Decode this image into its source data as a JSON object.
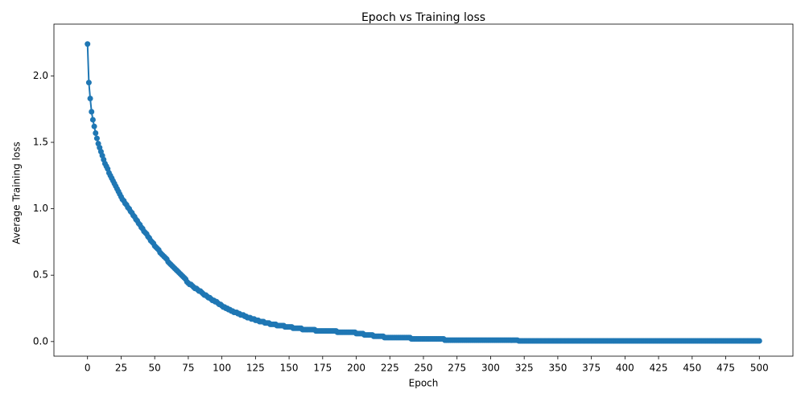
{
  "chart_data": {
    "type": "line",
    "title": "Epoch vs Training loss",
    "x_label": "Epoch",
    "y_label": "Average Training loss",
    "x": [
      0,
      1,
      2,
      3,
      4,
      5,
      6,
      7,
      8,
      9,
      10,
      11,
      12,
      13,
      14,
      15,
      16,
      17,
      18,
      19,
      20,
      21,
      22,
      23,
      24,
      25,
      26,
      27,
      28,
      29,
      30,
      31,
      32,
      33,
      34,
      35,
      36,
      37,
      38,
      39,
      40,
      41,
      42,
      43,
      44,
      45,
      46,
      47,
      48,
      49,
      50,
      51,
      52,
      53,
      54,
      55,
      56,
      57,
      58,
      59,
      60,
      61,
      62,
      63,
      64,
      65,
      66,
      67,
      68,
      69,
      70,
      71,
      72,
      73,
      74,
      75,
      76,
      77,
      78,
      79,
      80,
      81,
      82,
      83,
      84,
      85,
      86,
      87,
      88,
      89,
      90,
      91,
      92,
      93,
      94,
      95,
      96,
      97,
      98,
      99,
      100,
      101,
      102,
      103,
      104,
      105,
      106,
      107,
      108,
      109,
      110,
      111,
      112,
      113,
      114,
      115,
      116,
      117,
      118,
      119,
      120,
      121,
      122,
      123,
      124,
      125,
      126,
      127,
      128,
      129,
      130,
      131,
      132,
      133,
      134,
      135,
      136,
      137,
      138,
      139,
      140,
      141,
      142,
      143,
      144,
      145,
      146,
      147,
      148,
      149,
      150,
      151,
      152,
      153,
      154,
      155,
      156,
      157,
      158,
      159,
      160,
      161,
      162,
      163,
      164,
      165,
      166,
      167,
      168,
      169,
      170,
      171,
      172,
      173,
      174,
      175,
      176,
      177,
      178,
      179,
      180,
      181,
      182,
      183,
      184,
      185,
      186,
      187,
      188,
      189,
      190,
      191,
      192,
      193,
      194,
      195,
      196,
      197,
      198,
      199,
      200,
      201,
      202,
      203,
      204,
      205,
      206,
      207,
      208,
      209,
      210,
      211,
      212,
      213,
      214,
      215,
      216,
      217,
      218,
      219,
      220,
      221,
      222,
      223,
      224,
      225,
      226,
      227,
      228,
      229,
      230,
      231,
      232,
      233,
      234,
      235,
      236,
      237,
      238,
      239,
      240,
      241,
      242,
      243,
      244,
      245,
      246,
      247,
      248,
      249,
      250,
      251,
      252,
      253,
      254,
      255,
      256,
      257,
      258,
      259,
      260,
      261,
      262,
      263,
      264,
      265,
      266,
      267,
      268,
      269,
      270,
      271,
      272,
      273,
      274,
      275,
      276,
      277,
      278,
      279,
      280,
      281,
      282,
      283,
      284,
      285,
      286,
      287,
      288,
      289,
      290,
      291,
      292,
      293,
      294,
      295,
      296,
      297,
      298,
      299,
      300,
      301,
      302,
      303,
      304,
      305,
      306,
      307,
      308,
      309,
      310,
      311,
      312,
      313,
      314,
      315,
      316,
      317,
      318,
      319,
      320,
      321,
      322,
      323,
      324,
      325,
      326,
      327,
      328,
      329,
      330,
      331,
      332,
      333,
      334,
      335,
      336,
      337,
      338,
      339,
      340,
      341,
      342,
      343,
      344,
      345,
      346,
      347,
      348,
      349,
      350,
      351,
      352,
      353,
      354,
      355,
      356,
      357,
      358,
      359,
      360,
      361,
      362,
      363,
      364,
      365,
      366,
      367,
      368,
      369,
      370,
      371,
      372,
      373,
      374,
      375,
      376,
      377,
      378,
      379,
      380,
      381,
      382,
      383,
      384,
      385,
      386,
      387,
      388,
      389,
      390,
      391,
      392,
      393,
      394,
      395,
      396,
      397,
      398,
      399,
      400,
      401,
      402,
      403,
      404,
      405,
      406,
      407,
      408,
      409,
      410,
      411,
      412,
      413,
      414,
      415,
      416,
      417,
      418,
      419,
      420,
      421,
      422,
      423,
      424,
      425,
      426,
      427,
      428,
      429,
      430,
      431,
      432,
      433,
      434,
      435,
      436,
      437,
      438,
      439,
      440,
      441,
      442,
      443,
      444,
      445,
      446,
      447,
      448,
      449,
      450,
      451,
      452,
      453,
      454,
      455,
      456,
      457,
      458,
      459,
      460,
      461,
      462,
      463,
      464,
      465,
      466,
      467,
      468,
      469,
      470,
      471,
      472,
      473,
      474,
      475,
      476,
      477,
      478,
      479,
      480,
      481,
      482,
      483,
      484,
      485,
      486,
      487,
      488,
      489,
      490,
      491,
      492,
      493,
      494,
      495,
      496,
      497,
      498,
      499,
      500
    ],
    "values": [
      2.24,
      1.95,
      1.83,
      1.73,
      1.67,
      1.62,
      1.57,
      1.53,
      1.49,
      1.46,
      1.43,
      1.4,
      1.37,
      1.34,
      1.32,
      1.3,
      1.27,
      1.25,
      1.23,
      1.21,
      1.19,
      1.17,
      1.15,
      1.13,
      1.11,
      1.09,
      1.07,
      1.06,
      1.04,
      1.03,
      1.01,
      1.0,
      0.98,
      0.97,
      0.95,
      0.94,
      0.92,
      0.91,
      0.89,
      0.88,
      0.86,
      0.85,
      0.83,
      0.82,
      0.81,
      0.79,
      0.78,
      0.76,
      0.75,
      0.74,
      0.72,
      0.71,
      0.7,
      0.69,
      0.67,
      0.66,
      0.65,
      0.64,
      0.63,
      0.62,
      0.6,
      0.59,
      0.58,
      0.57,
      0.56,
      0.55,
      0.54,
      0.53,
      0.52,
      0.51,
      0.5,
      0.49,
      0.48,
      0.47,
      0.45,
      0.44,
      0.43,
      0.43,
      0.42,
      0.41,
      0.4,
      0.4,
      0.39,
      0.38,
      0.38,
      0.37,
      0.36,
      0.35,
      0.35,
      0.34,
      0.33,
      0.33,
      0.32,
      0.31,
      0.31,
      0.3,
      0.3,
      0.29,
      0.28,
      0.28,
      0.27,
      0.26,
      0.26,
      0.25,
      0.25,
      0.24,
      0.24,
      0.23,
      0.23,
      0.22,
      0.22,
      0.22,
      0.21,
      0.21,
      0.2,
      0.2,
      0.2,
      0.19,
      0.19,
      0.18,
      0.18,
      0.18,
      0.17,
      0.17,
      0.17,
      0.16,
      0.16,
      0.16,
      0.15,
      0.15,
      0.15,
      0.15,
      0.14,
      0.14,
      0.14,
      0.14,
      0.13,
      0.13,
      0.13,
      0.13,
      0.13,
      0.12,
      0.12,
      0.12,
      0.12,
      0.12,
      0.12,
      0.11,
      0.11,
      0.11,
      0.11,
      0.11,
      0.11,
      0.1,
      0.1,
      0.1,
      0.1,
      0.1,
      0.1,
      0.1,
      0.09,
      0.09,
      0.09,
      0.09,
      0.09,
      0.09,
      0.09,
      0.09,
      0.09,
      0.09,
      0.08,
      0.08,
      0.08,
      0.08,
      0.08,
      0.08,
      0.08,
      0.08,
      0.08,
      0.08,
      0.08,
      0.08,
      0.08,
      0.08,
      0.08,
      0.08,
      0.07,
      0.07,
      0.07,
      0.07,
      0.07,
      0.07,
      0.07,
      0.07,
      0.07,
      0.07,
      0.07,
      0.07,
      0.07,
      0.07,
      0.06,
      0.06,
      0.06,
      0.06,
      0.06,
      0.06,
      0.05,
      0.05,
      0.05,
      0.05,
      0.05,
      0.05,
      0.05,
      0.04,
      0.04,
      0.04,
      0.04,
      0.04,
      0.04,
      0.04,
      0.04,
      0.03,
      0.03,
      0.03,
      0.03,
      0.03,
      0.03,
      0.03,
      0.03,
      0.03,
      0.03,
      0.03,
      0.03,
      0.03,
      0.03,
      0.03,
      0.03,
      0.03,
      0.03,
      0.03,
      0.03,
      0.02,
      0.02,
      0.02,
      0.02,
      0.02,
      0.02,
      0.02,
      0.02,
      0.02,
      0.02,
      0.02,
      0.02,
      0.02,
      0.02,
      0.02,
      0.02,
      0.02,
      0.02,
      0.02,
      0.02,
      0.02,
      0.02,
      0.02,
      0.02,
      0.02,
      0.01,
      0.01,
      0.01,
      0.01,
      0.01,
      0.01,
      0.01,
      0.01,
      0.01,
      0.01,
      0.01,
      0.01,
      0.01,
      0.01,
      0.01,
      0.01,
      0.01,
      0.01,
      0.01,
      0.01,
      0.01,
      0.01,
      0.01,
      0.01,
      0.01,
      0.01,
      0.01,
      0.01,
      0.01,
      0.01,
      0.01,
      0.01,
      0.01,
      0.01,
      0.01,
      0.01,
      0.01,
      0.01,
      0.01,
      0.01,
      0.01,
      0.01,
      0.01,
      0.01,
      0.01,
      0.01,
      0.01,
      0.01,
      0.01,
      0.01,
      0.01,
      0.01,
      0.01,
      0.01,
      0.01,
      0.005,
      0.005,
      0.005,
      0.005,
      0.005,
      0.005,
      0.005,
      0.005,
      0.005,
      0.005,
      0.005,
      0.005,
      0.005,
      0.005,
      0.005,
      0.005,
      0.005,
      0.005,
      0.005,
      0.005,
      0.005,
      0.005,
      0.005,
      0.005,
      0.005,
      0.005,
      0.005,
      0.005,
      0.005,
      0.005,
      0.005,
      0.005,
      0.005,
      0.005,
      0.005,
      0.005,
      0.005,
      0.005,
      0.005,
      0.005,
      0.005,
      0.005,
      0.005,
      0.005,
      0.005,
      0.005,
      0.005,
      0.005,
      0.005,
      0.005,
      0.005,
      0.005,
      0.005,
      0.005,
      0.005,
      0.005,
      0.005,
      0.005,
      0.005,
      0.005,
      0.005,
      0.005,
      0.005,
      0.005,
      0.005,
      0.005,
      0.005,
      0.005,
      0.005,
      0.005,
      0.005,
      0.005,
      0.005,
      0.005,
      0.005,
      0.005,
      0.005,
      0.005,
      0.005,
      0.005,
      0.005,
      0.005,
      0.005,
      0.005,
      0.005,
      0.005,
      0.005,
      0.005,
      0.005,
      0.005,
      0.005,
      0.005,
      0.005,
      0.005,
      0.005,
      0.005,
      0.005,
      0.005,
      0.005,
      0.005,
      0.005,
      0.005,
      0.005,
      0.005,
      0.005,
      0.005,
      0.005,
      0.005,
      0.005,
      0.005,
      0.005,
      0.005,
      0.005,
      0.005,
      0.005,
      0.005,
      0.005,
      0.005,
      0.005,
      0.005,
      0.005,
      0.005,
      0.005,
      0.005,
      0.005,
      0.005,
      0.005,
      0.005,
      0.005,
      0.005,
      0.005,
      0.005,
      0.005,
      0.005,
      0.005,
      0.005,
      0.005,
      0.005,
      0.005,
      0.005,
      0.005,
      0.005,
      0.005,
      0.005,
      0.005,
      0.005,
      0.005,
      0.005,
      0.005,
      0.005,
      0.005,
      0.005,
      0.005,
      0.005,
      0.005,
      0.005,
      0.005,
      0.005,
      0.005,
      0.005,
      0.005,
      0.005,
      0.005,
      0.005,
      0.005,
      0.005,
      0.005,
      0.005,
      0.005,
      0.005,
      0.005,
      0.005,
      0.005,
      0.005,
      0.005,
      0.005,
      0.005,
      0.005,
      0.005,
      0.005
    ],
    "color": "#1f77b4",
    "markers": true,
    "xlim": [
      -25,
      525
    ],
    "xticks": [
      0,
      25,
      50,
      75,
      100,
      125,
      150,
      175,
      200,
      225,
      250,
      275,
      300,
      325,
      350,
      375,
      400,
      425,
      450,
      475,
      500
    ],
    "ylim": [
      -0.11,
      2.39
    ],
    "yticks": [
      {
        "value": 0,
        "label": "0.0"
      },
      {
        "value": 0.5,
        "label": "0.5"
      },
      {
        "value": 1,
        "label": "1.0"
      },
      {
        "value": 1.5,
        "label": "1.5"
      },
      {
        "value": 2,
        "label": "2.0"
      }
    ],
    "grid": false
  }
}
